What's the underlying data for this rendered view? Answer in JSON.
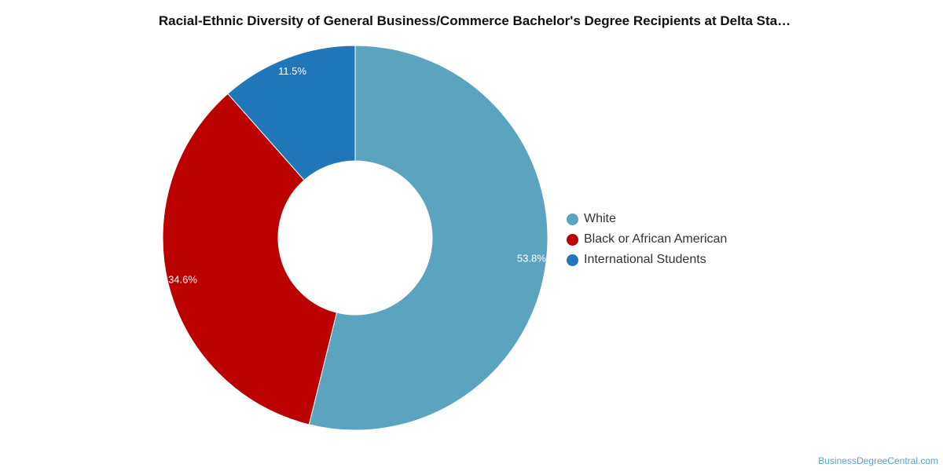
{
  "chart_data": {
    "type": "pie",
    "title": "Racial-Ethnic Diversity of General Business/Commerce Bachelor's Degree Recipients at Delta Sta…",
    "categories": [
      "White",
      "Black or African American",
      "International Students"
    ],
    "values": [
      53.8,
      34.6,
      11.5
    ],
    "value_labels": [
      "53.8%",
      "34.6%",
      "11.5%"
    ],
    "colors": [
      "#5ba3bf",
      "#bb0000",
      "#1f77b9"
    ],
    "donut": true,
    "legend_position": "right"
  },
  "footer": {
    "credit": "BusinessDegreeCentral.com"
  }
}
